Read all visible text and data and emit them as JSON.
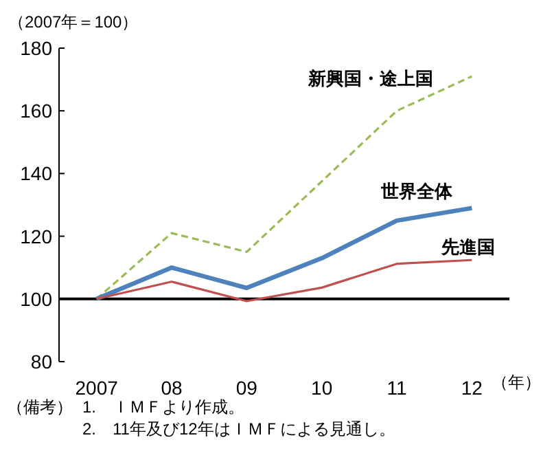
{
  "chart_data": {
    "type": "line",
    "ylabel": "（2007年＝100）",
    "xlabel": "（年）",
    "categories": [
      "2007",
      "08",
      "09",
      "10",
      "11",
      "12"
    ],
    "series": [
      {
        "name": "新興国・途上国",
        "color": "#9bbb59",
        "line_style": "dashed",
        "values": [
          100,
          121,
          115,
          137.5,
          160,
          171
        ]
      },
      {
        "name": "世界全体",
        "color": "#4f81bd",
        "line_style": "solid",
        "values": [
          100,
          110,
          103.5,
          113,
          125,
          129
        ]
      },
      {
        "name": "先進国",
        "color": "#c0504d",
        "line_style": "solid",
        "values": [
          100,
          105.5,
          99.3,
          103.6,
          111.2,
          112.4
        ]
      }
    ],
    "ylim": [
      80,
      180
    ],
    "yticks": [
      80,
      100,
      120,
      140,
      160,
      180
    ],
    "ref_lines": [
      {
        "axis": "y",
        "value": 100,
        "color": "#000000"
      }
    ],
    "annotations": [
      "（備考）",
      "1.　ＩＭＦより作成。",
      "2.　11年及び12年はＩＭＦによる見通し。"
    ]
  }
}
